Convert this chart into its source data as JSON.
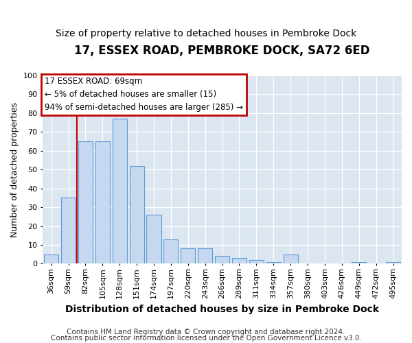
{
  "title1": "17, ESSEX ROAD, PEMBROKE DOCK, SA72 6ED",
  "title2": "Size of property relative to detached houses in Pembroke Dock",
  "xlabel": "Distribution of detached houses by size in Pembroke Dock",
  "ylabel": "Number of detached properties",
  "categories": [
    "36sqm",
    "59sqm",
    "82sqm",
    "105sqm",
    "128sqm",
    "151sqm",
    "174sqm",
    "197sqm",
    "220sqm",
    "243sqm",
    "266sqm",
    "289sqm",
    "311sqm",
    "334sqm",
    "357sqm",
    "380sqm",
    "403sqm",
    "426sqm",
    "449sqm",
    "472sqm",
    "495sqm"
  ],
  "values": [
    5,
    35,
    65,
    65,
    77,
    52,
    26,
    13,
    8,
    8,
    4,
    3,
    2,
    1,
    5,
    0,
    0,
    0,
    1,
    0,
    1
  ],
  "bar_color": "#c5d8f0",
  "bar_edge_color": "#5b9bd5",
  "vline_color": "#c00000",
  "vline_x": 1.5,
  "ylim": [
    0,
    100
  ],
  "annotation_text": "17 ESSEX ROAD: 69sqm\n← 5% of detached houses are smaller (15)\n94% of semi-detached houses are larger (285) →",
  "annotation_box_color": "white",
  "annotation_box_edge_color": "#c00000",
  "footer1": "Contains HM Land Registry data © Crown copyright and database right 2024.",
  "footer2": "Contains public sector information licensed under the Open Government Licence v3.0.",
  "fig_bg_color": "#ffffff",
  "plot_bg_color": "#dce6f1",
  "title1_fontsize": 12,
  "title2_fontsize": 10,
  "ylabel_fontsize": 9,
  "xlabel_fontsize": 10,
  "tick_fontsize": 8,
  "footer_fontsize": 7.5,
  "annot_fontsize": 8.5
}
